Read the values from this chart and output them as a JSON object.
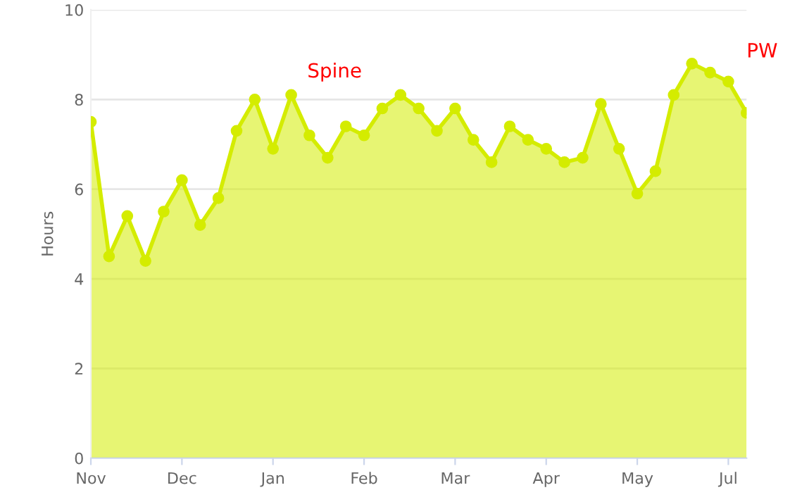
{
  "chart_data": {
    "type": "area",
    "ylabel": "Hours",
    "categories": [
      "Nov",
      null,
      null,
      null,
      null,
      "Dec",
      null,
      null,
      null,
      null,
      "Jan",
      null,
      null,
      null,
      null,
      "Feb",
      null,
      null,
      null,
      null,
      "Mar",
      null,
      null,
      null,
      null,
      "Apr",
      null,
      null,
      null,
      null,
      "May",
      null,
      null,
      null,
      null,
      "Jul",
      null
    ],
    "series": [
      {
        "color": "#d4ec00",
        "values": [
          7.5,
          4.5,
          5.4,
          4.4,
          5.5,
          6.2,
          5.2,
          5.8,
          7.3,
          8.0,
          6.9,
          8.1,
          7.2,
          6.7,
          7.4,
          7.2,
          7.8,
          8.1,
          7.8,
          7.3,
          7.8,
          7.1,
          6.6,
          7.4,
          7.1,
          6.9,
          6.6,
          6.7,
          7.9,
          6.9,
          5.9,
          6.4,
          8.1,
          8.8,
          8.6,
          8.4,
          7.7
        ]
      }
    ],
    "ylim": [
      0,
      10
    ],
    "yticks": [
      0,
      2,
      4,
      6,
      8,
      10
    ],
    "annotations": [
      "Spine",
      "PW"
    ],
    "grid": "y",
    "marker": "circle",
    "line_style": "solid",
    "legend": false
  }
}
